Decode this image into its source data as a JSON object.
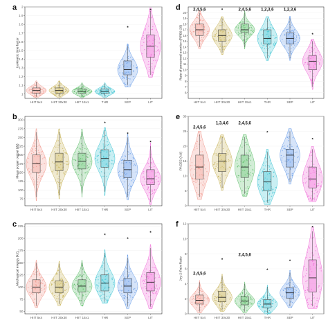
{
  "chart_data": [
    {
      "panel": "a",
      "type": "violin-box",
      "categories": [
        "HIIT 5x4",
        "HIIT 30x30",
        "HIIT 15x1",
        "THR",
        "SEP",
        "LIT"
      ],
      "ylabel": "Isokinetic time factor",
      "ylim": [
        0.95,
        2.0
      ],
      "yticks": [
        1,
        1.1,
        1.2,
        1.3,
        1.4,
        1.5,
        1.6,
        1.7,
        1.8,
        1.9,
        2
      ],
      "boxes": [
        {
          "min": 0.97,
          "q1": 1.01,
          "median": 1.04,
          "q3": 1.07,
          "max": 1.14
        },
        {
          "min": 0.97,
          "q1": 1.01,
          "median": 1.04,
          "q3": 1.07,
          "max": 1.14
        },
        {
          "min": 0.97,
          "q1": 1.01,
          "median": 1.03,
          "q3": 1.06,
          "max": 1.12
        },
        {
          "min": 0.97,
          "q1": 1.01,
          "median": 1.03,
          "q3": 1.06,
          "max": 1.12
        },
        {
          "min": 1.1,
          "q1": 1.22,
          "median": 1.28,
          "q3": 1.38,
          "max": 1.55
        },
        {
          "min": 1.22,
          "q1": 1.42,
          "median": 1.55,
          "q3": 1.68,
          "max": 1.95
        }
      ],
      "annotations": [
        {
          "category": "SEP",
          "text": "*",
          "y": 1.77
        },
        {
          "category": "LIT",
          "text": "*",
          "y": 1.97
        }
      ]
    },
    {
      "panel": "b",
      "type": "violin-box",
      "categories": [
        "HIIT 5x4",
        "HIIT 30x30",
        "HIIT 15x1",
        "THR",
        "SEP",
        "LIT"
      ],
      "ylabel": "Mean power output (W)",
      "ylim": [
        55,
        310
      ],
      "yticks": [
        75,
        100,
        125,
        150,
        175,
        200,
        225,
        250,
        275,
        300
      ],
      "boxes": [
        {
          "min": 80,
          "q1": 150,
          "median": 175,
          "q3": 200,
          "max": 265
        },
        {
          "min": 85,
          "q1": 155,
          "median": 180,
          "q3": 205,
          "max": 265
        },
        {
          "min": 90,
          "q1": 160,
          "median": 182,
          "q3": 205,
          "max": 265
        },
        {
          "min": 95,
          "q1": 165,
          "median": 190,
          "q3": 215,
          "max": 270
        },
        {
          "min": 80,
          "q1": 135,
          "median": 158,
          "q3": 185,
          "max": 250
        },
        {
          "min": 65,
          "q1": 115,
          "median": 132,
          "q3": 158,
          "max": 225
        }
      ],
      "annotations": [
        {
          "category": "THR",
          "text": "*",
          "y": 292
        },
        {
          "category": "SEP",
          "text": "*",
          "y": 262
        },
        {
          "category": "LIT",
          "text": "*",
          "y": 238
        }
      ]
    },
    {
      "panel": "c",
      "type": "violin-box",
      "categories": [
        "HIIT 5x4",
        "HIIT 30x30",
        "HIIT 15x1",
        "THR",
        "SEP",
        "LIT"
      ],
      "ylabel": "Mechanical energy (kJ)",
      "ylim": [
        45,
        230
      ],
      "yticks": [
        50,
        75,
        100,
        125,
        150,
        175,
        200,
        225
      ],
      "boxes": [
        {
          "min": 62,
          "q1": 88,
          "median": 100,
          "q3": 115,
          "max": 150
        },
        {
          "min": 65,
          "q1": 88,
          "median": 100,
          "q3": 113,
          "max": 148
        },
        {
          "min": 65,
          "q1": 90,
          "median": 102,
          "q3": 115,
          "max": 150
        },
        {
          "min": 70,
          "q1": 92,
          "median": 108,
          "q3": 125,
          "max": 170
        },
        {
          "min": 60,
          "q1": 88,
          "median": 102,
          "q3": 118,
          "max": 160
        },
        {
          "min": 60,
          "q1": 92,
          "median": 110,
          "q3": 130,
          "max": 180
        }
      ],
      "annotations": [
        {
          "category": "THR",
          "text": "*",
          "y": 208
        },
        {
          "category": "SEP",
          "text": "*",
          "y": 200
        },
        {
          "category": "LIT",
          "text": "*",
          "y": 213
        }
      ]
    },
    {
      "panel": "d",
      "type": "violin-box",
      "categories": [
        "HIIT 5x4",
        "HIIT 30x30",
        "HIIT 15x1",
        "THR",
        "SEP",
        "LIT"
      ],
      "ylabel": "Rate of perceived exertion (RPE6-20)",
      "ylim": [
        5,
        21
      ],
      "yticks": [
        6,
        7,
        8,
        9,
        10,
        11,
        12,
        13,
        14,
        15,
        16,
        17,
        18,
        19,
        20
      ],
      "boxes": [
        {
          "min": 14,
          "q1": 16,
          "median": 17,
          "q3": 18,
          "max": 20
        },
        {
          "min": 13,
          "q1": 15,
          "median": 16,
          "q3": 17,
          "max": 19
        },
        {
          "min": 14,
          "q1": 16.5,
          "median": 17,
          "q3": 18,
          "max": 20
        },
        {
          "min": 12,
          "q1": 14.5,
          "median": 15.5,
          "q3": 17,
          "max": 19
        },
        {
          "min": 12,
          "q1": 14.5,
          "median": 15.5,
          "q3": 16.5,
          "max": 19
        },
        {
          "min": 7,
          "q1": 10,
          "median": 11.5,
          "q3": 12.5,
          "max": 15
        }
      ],
      "annotations": [
        {
          "category": "HIIT 5x4",
          "text": "2,4,5,6",
          "y": 20.6
        },
        {
          "category": "HIIT 30x30",
          "text": "*",
          "y": 20.6
        },
        {
          "category": "HIIT 15x1",
          "text": "2,4,5,6",
          "y": 20.6
        },
        {
          "category": "THR",
          "text": "1,2,3,6",
          "y": 20.6
        },
        {
          "category": "SEP",
          "text": "1,2,3,6",
          "y": 20.6
        },
        {
          "category": "LIT",
          "text": "*",
          "y": 16.3
        }
      ]
    },
    {
      "panel": "e",
      "type": "violin-box",
      "categories": [
        "HIIT 5x4",
        "HIIT 30x30",
        "HIIT 15x1",
        "THR",
        "SEP",
        "LIT"
      ],
      "ylabel": "PACES (AU)",
      "ylim": [
        0,
        30
      ],
      "yticks": [
        0,
        5,
        10,
        15,
        20,
        25,
        30
      ],
      "boxes": [
        {
          "min": 3,
          "q1": 9,
          "median": 13,
          "q3": 17,
          "max": 24
        },
        {
          "min": 6,
          "q1": 11.5,
          "median": 15,
          "q3": 17.5,
          "max": 23
        },
        {
          "min": 4,
          "q1": 9.5,
          "median": 13,
          "q3": 17,
          "max": 23
        },
        {
          "min": 1,
          "q1": 5,
          "median": 8,
          "q3": 11.5,
          "max": 18
        },
        {
          "min": 8,
          "q1": 13,
          "median": 17,
          "q3": 19,
          "max": 25
        },
        {
          "min": 2,
          "q1": 6,
          "median": 9,
          "q3": 13,
          "max": 19
        }
      ],
      "annotations": [
        {
          "category": "HIIT 5x4",
          "text": "2,4,5,6",
          "y": 26.4
        },
        {
          "category": "HIIT 30x30",
          "text": "1,3,4,6",
          "y": 27.8
        },
        {
          "category": "HIIT 15x1",
          "text": "2,4,5,6",
          "y": 27.8
        },
        {
          "category": "THR",
          "text": "*",
          "y": 24.8
        },
        {
          "category": "LIT",
          "text": "*",
          "y": 22.5
        }
      ]
    },
    {
      "panel": "f",
      "type": "violin-box",
      "categories": [
        "HIIT 5x4",
        "HIIT 30x30",
        "HIIT 15x1",
        "THR",
        "SEP",
        "LIT"
      ],
      "ylabel": "Joy-2-Pain Ratio",
      "ylim": [
        0,
        12
      ],
      "yticks": [
        0,
        2,
        4,
        6,
        8,
        10,
        12
      ],
      "boxes": [
        {
          "min": 0.3,
          "q1": 1.3,
          "median": 1.8,
          "q3": 2.5,
          "max": 4.2
        },
        {
          "min": 0.5,
          "q1": 1.6,
          "median": 2.2,
          "q3": 3.0,
          "max": 5.0
        },
        {
          "min": 0.3,
          "q1": 1.2,
          "median": 1.7,
          "q3": 2.3,
          "max": 4.0
        },
        {
          "min": 0.1,
          "q1": 0.8,
          "median": 1.3,
          "q3": 1.9,
          "max": 3.6
        },
        {
          "min": 1.0,
          "q1": 2.1,
          "median": 2.8,
          "q3": 3.5,
          "max": 5.5
        },
        {
          "min": 1.0,
          "q1": 2.9,
          "median": 4.8,
          "q3": 7.2,
          "max": 11.0
        }
      ],
      "annotations": [
        {
          "category": "HIIT 5x4",
          "text": "2,4,5,6",
          "y": 5.4
        },
        {
          "category": "HIIT 30x30",
          "text": "*",
          "y": 7.3
        },
        {
          "category": "HIIT 15x1",
          "text": "2,4,5,6",
          "y": 7.9
        },
        {
          "category": "THR",
          "text": "*",
          "y": 5.9
        },
        {
          "category": "SEP",
          "text": "*",
          "y": 7.1
        },
        {
          "category": "LIT",
          "text": "*",
          "y": 11.6
        }
      ]
    }
  ],
  "colors": {
    "series": [
      "#f29a8f",
      "#c8b45a",
      "#5fbf6a",
      "#3ec4d3",
      "#6a9ee8",
      "#f06ad8"
    ],
    "box_fill": "#ffffff",
    "axis": "#333333",
    "grid": "#eeeeee"
  }
}
